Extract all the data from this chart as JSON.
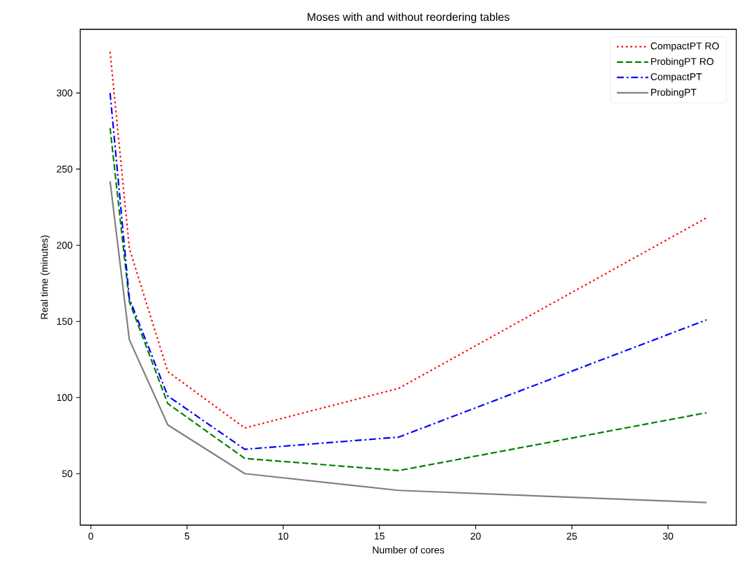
{
  "chart_data": {
    "type": "line",
    "title": "Moses with and without reordering tables",
    "xlabel": "Number of cores",
    "ylabel": "Real time (minutes)",
    "x": [
      1,
      2,
      4,
      8,
      16,
      32
    ],
    "series": [
      {
        "name": "CompactPT RO",
        "color": "#ff0000",
        "line_style": "dotted",
        "values": [
          327,
          198,
          117,
          80,
          106,
          218
        ]
      },
      {
        "name": "ProbingPT RO",
        "color": "#008000",
        "line_style": "dashed",
        "values": [
          277,
          163,
          96,
          60,
          52,
          90
        ]
      },
      {
        "name": "CompactPT",
        "color": "#0000ff",
        "line_style": "dashdot",
        "values": [
          300,
          165,
          101,
          66,
          74,
          151
        ]
      },
      {
        "name": "ProbingPT",
        "color": "#808080",
        "line_style": "solid",
        "values": [
          242,
          138,
          82,
          50,
          39,
          31
        ]
      }
    ],
    "xlim": [
      -0.55,
      33.55
    ],
    "ylim": [
      16.2,
      341.8
    ],
    "xticks": [
      0,
      5,
      10,
      15,
      20,
      25,
      30
    ],
    "yticks": [
      50,
      100,
      150,
      200,
      250,
      300
    ],
    "grid": false,
    "legend": "top right",
    "marker": "none"
  }
}
